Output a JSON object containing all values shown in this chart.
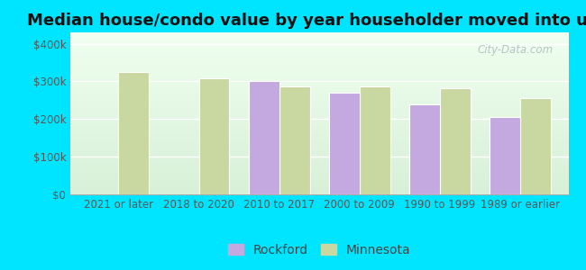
{
  "title": "Median house/condo value by year householder moved into unit",
  "categories": [
    "2021 or later",
    "2018 to 2020",
    "2010 to 2017",
    "2000 to 2009",
    "1990 to 1999",
    "1989 or earlier"
  ],
  "rockford_values": [
    null,
    null,
    300000,
    270000,
    240000,
    205000
  ],
  "minnesota_values": [
    325000,
    307000,
    287000,
    287000,
    282000,
    255000
  ],
  "rockford_color": "#c4a8e0",
  "minnesota_color": "#c8d8a0",
  "background_top": "#f0fff0",
  "background_bottom": "#d8f0d8",
  "outer_background": "#00e5ff",
  "ylabel_ticks": [
    "$0",
    "$100k",
    "$200k",
    "$300k",
    "$400k"
  ],
  "ylabel_values": [
    0,
    100000,
    200000,
    300000,
    400000
  ],
  "ylim": [
    0,
    430000
  ],
  "bar_width": 0.38,
  "legend_rockford": "Rockford",
  "legend_minnesota": "Minnesota",
  "title_fontsize": 13,
  "tick_fontsize": 8.5,
  "legend_fontsize": 10,
  "watermark": "City-Data.com"
}
